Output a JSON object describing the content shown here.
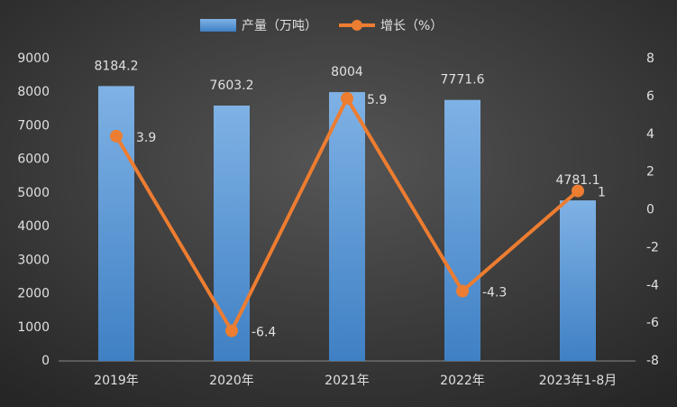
{
  "chart_data": {
    "type": "bar",
    "categories": [
      "2019年",
      "2020年",
      "2021年",
      "2022年",
      "2023年1-8月"
    ],
    "series": [
      {
        "name": "产量（万吨）",
        "type": "bar",
        "color": "#5b9bd5",
        "values": [
          8184.2,
          7603.2,
          8004,
          7771.6,
          4781.1
        ]
      },
      {
        "name": "增长（%）",
        "type": "line",
        "axis": "y2",
        "color": "#ed7d31",
        "values": [
          3.9,
          -6.4,
          5.9,
          -4.3,
          1
        ]
      }
    ],
    "ylim": [
      0,
      9000
    ],
    "yticks": [
      0,
      1000,
      2000,
      3000,
      4000,
      5000,
      6000,
      7000,
      8000,
      9000
    ],
    "y2lim": [
      -8,
      8
    ],
    "y2ticks": [
      -8,
      -6,
      -4,
      -2,
      0,
      2,
      4,
      6,
      8
    ],
    "grid": false
  }
}
